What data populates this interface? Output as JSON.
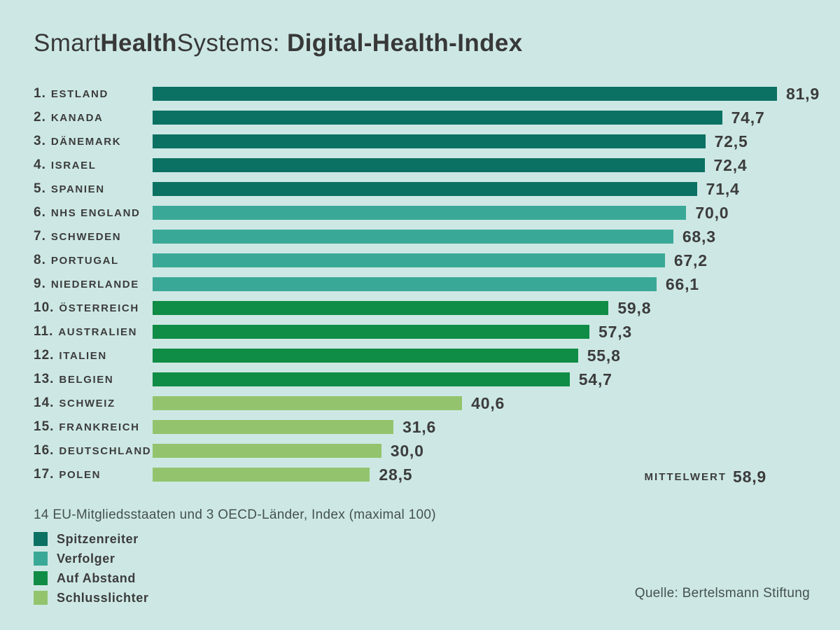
{
  "title": {
    "full": "SmartHealthSystems: Digital-Health-Index",
    "segments": [
      {
        "text": "Smart",
        "bold": false
      },
      {
        "text": "Health",
        "bold": true
      },
      {
        "text": "Systems: ",
        "bold": false
      },
      {
        "text": "Digital-Health-Index",
        "bold": true
      }
    ]
  },
  "colors": {
    "background": "#cde8e4",
    "text": "#3c3c3c",
    "note_text": "#44514f"
  },
  "chart_data": {
    "type": "bar",
    "orientation": "horizontal",
    "title": "SmartHealthSystems: Digital-Health-Index",
    "xlabel": "",
    "ylabel": "",
    "xlim": [
      0,
      100
    ],
    "grid": false,
    "value_format": "decimal-comma",
    "note": "14 EU-Mitgliedsstaaten und 3 OECD-Länder, Index (maximal 100)",
    "mean": {
      "label": "MITTELWERT",
      "value": 58.9,
      "display": "58,9"
    },
    "groups": {
      "spitzenreiter": {
        "label": "Spitzenreiter",
        "color": "#0b7163"
      },
      "verfolger": {
        "label": "Verfolger",
        "color": "#3aa897"
      },
      "auf_abstand": {
        "label": "Auf Abstand",
        "color": "#0f8c45"
      },
      "schlusslichter": {
        "label": "Schlusslichter",
        "color": "#93c46d"
      }
    },
    "legend_order": [
      "spitzenreiter",
      "verfolger",
      "auf_abstand",
      "schlusslichter"
    ],
    "legend_position": "bottom-left",
    "rows": [
      {
        "rank": "1.",
        "country": "ESTLAND",
        "value": 81.9,
        "display": "81,9",
        "group": "spitzenreiter"
      },
      {
        "rank": "2.",
        "country": "KANADA",
        "value": 74.7,
        "display": "74,7",
        "group": "spitzenreiter"
      },
      {
        "rank": "3.",
        "country": "DÄNEMARK",
        "value": 72.5,
        "display": "72,5",
        "group": "spitzenreiter"
      },
      {
        "rank": "4.",
        "country": "ISRAEL",
        "value": 72.4,
        "display": "72,4",
        "group": "spitzenreiter"
      },
      {
        "rank": "5.",
        "country": "SPANIEN",
        "value": 71.4,
        "display": "71,4",
        "group": "spitzenreiter"
      },
      {
        "rank": "6.",
        "country": "NHS ENGLAND",
        "value": 70.0,
        "display": "70,0",
        "group": "verfolger"
      },
      {
        "rank": "7.",
        "country": "SCHWEDEN",
        "value": 68.3,
        "display": "68,3",
        "group": "verfolger"
      },
      {
        "rank": "8.",
        "country": "PORTUGAL",
        "value": 67.2,
        "display": "67,2",
        "group": "verfolger"
      },
      {
        "rank": "9.",
        "country": "NIEDERLANDE",
        "value": 66.1,
        "display": "66,1",
        "group": "verfolger"
      },
      {
        "rank": "10.",
        "country": "ÖSTERREICH",
        "value": 59.8,
        "display": "59,8",
        "group": "auf_abstand"
      },
      {
        "rank": "11.",
        "country": "AUSTRALIEN",
        "value": 57.3,
        "display": "57,3",
        "group": "auf_abstand"
      },
      {
        "rank": "12.",
        "country": "ITALIEN",
        "value": 55.8,
        "display": "55,8",
        "group": "auf_abstand"
      },
      {
        "rank": "13.",
        "country": "BELGIEN",
        "value": 54.7,
        "display": "54,7",
        "group": "auf_abstand"
      },
      {
        "rank": "14.",
        "country": "SCHWEIZ",
        "value": 40.6,
        "display": "40,6",
        "group": "schlusslichter"
      },
      {
        "rank": "15.",
        "country": "FRANKREICH",
        "value": 31.6,
        "display": "31,6",
        "group": "schlusslichter"
      },
      {
        "rank": "16.",
        "country": "DEUTSCHLAND",
        "value": 30.0,
        "display": "30,0",
        "group": "schlusslichter"
      },
      {
        "rank": "17.",
        "country": "POLEN",
        "value": 28.5,
        "display": "28,5",
        "group": "schlusslichter"
      }
    ]
  },
  "source": "Quelle: Bertelsmann Stiftung"
}
